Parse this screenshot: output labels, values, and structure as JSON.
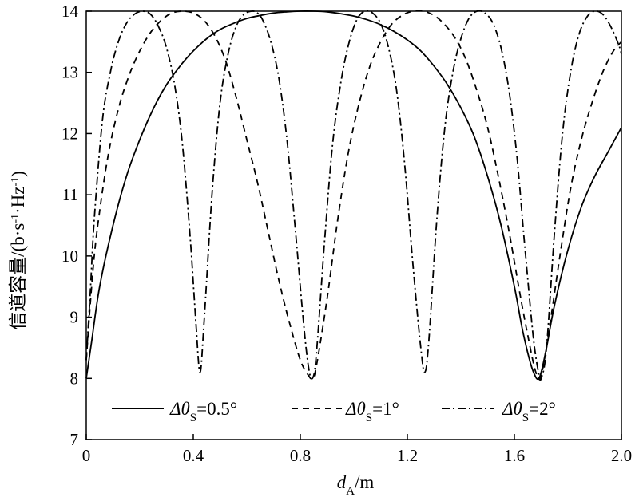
{
  "chart_data": {
    "type": "line",
    "xlabel": "dA/m",
    "xlabel_main": "d",
    "xlabel_sub": "A",
    "xlabel_unit": "/m",
    "ylabel": "信道容量/(b·s-1·Hz-1)",
    "ylabel_main": "信道容量/(b·s",
    "ylabel_sup1": "-1",
    "ylabel_mid": "·Hz",
    "ylabel_sup2": "-1",
    "ylabel_end": ")",
    "xlim": [
      0,
      2.0
    ],
    "ylim": [
      7,
      14
    ],
    "xticks": [
      0,
      0.4,
      0.8,
      1.2,
      1.6,
      2.0
    ],
    "xtick_labels": [
      "0",
      "0.4",
      "0.8",
      "1.2",
      "1.6",
      "2.0"
    ],
    "yticks": [
      7,
      8,
      9,
      10,
      11,
      12,
      13,
      14
    ],
    "ytick_labels": [
      "7",
      "8",
      "9",
      "10",
      "11",
      "12",
      "13",
      "14"
    ],
    "legend_position": "bottom",
    "grid": false,
    "series": [
      {
        "name": "Δθs=0.5°",
        "legend_main": "Δθ",
        "legend_sub": "S",
        "legend_val": "=0.5°",
        "style": "solid",
        "x": [
          0.0,
          0.02,
          0.05,
          0.1,
          0.15,
          0.2,
          0.25,
          0.3,
          0.35,
          0.4,
          0.45,
          0.5,
          0.55,
          0.6,
          0.65,
          0.7,
          0.75,
          0.8,
          0.85,
          0.9,
          0.95,
          1.0,
          1.05,
          1.1,
          1.15,
          1.2,
          1.25,
          1.3,
          1.35,
          1.4,
          1.45,
          1.5,
          1.55,
          1.6,
          1.63,
          1.66,
          1.68,
          1.69,
          1.7,
          1.72,
          1.75,
          1.8,
          1.85,
          1.9,
          1.95,
          2.0
        ],
        "y": [
          8.0,
          8.6,
          9.5,
          10.5,
          11.3,
          11.9,
          12.4,
          12.8,
          13.1,
          13.35,
          13.55,
          13.7,
          13.8,
          13.88,
          13.93,
          13.97,
          13.99,
          14.0,
          14.0,
          13.99,
          13.96,
          13.92,
          13.86,
          13.78,
          13.67,
          13.53,
          13.35,
          13.1,
          12.8,
          12.42,
          11.95,
          11.3,
          10.5,
          9.5,
          8.8,
          8.25,
          8.02,
          8.0,
          8.1,
          8.5,
          9.2,
          10.1,
          10.8,
          11.3,
          11.7,
          12.1
        ]
      },
      {
        "name": "Δθs=1°",
        "legend_main": "Δθ",
        "legend_sub": "S",
        "legend_val": "=1°",
        "style": "dashed",
        "x": [
          0.0,
          0.02,
          0.04,
          0.08,
          0.12,
          0.16,
          0.2,
          0.24,
          0.28,
          0.32,
          0.36,
          0.4,
          0.44,
          0.48,
          0.52,
          0.56,
          0.6,
          0.64,
          0.68,
          0.72,
          0.76,
          0.8,
          0.83,
          0.845,
          0.86,
          0.9,
          0.94,
          0.98,
          1.02,
          1.06,
          1.1,
          1.14,
          1.18,
          1.22,
          1.26,
          1.3,
          1.34,
          1.38,
          1.42,
          1.46,
          1.5,
          1.54,
          1.58,
          1.62,
          1.65,
          1.68,
          1.7,
          1.73,
          1.77,
          1.81,
          1.85,
          1.89,
          1.93,
          1.97,
          2.0
        ],
        "y": [
          8.3,
          9.5,
          10.4,
          11.6,
          12.4,
          12.95,
          13.35,
          13.65,
          13.85,
          13.97,
          14.0,
          13.97,
          13.85,
          13.6,
          13.2,
          12.6,
          11.9,
          11.2,
          10.4,
          9.6,
          8.9,
          8.3,
          8.05,
          8.0,
          8.2,
          9.3,
          10.6,
          11.7,
          12.5,
          13.1,
          13.5,
          13.78,
          13.93,
          14.0,
          14.0,
          13.93,
          13.78,
          13.55,
          13.2,
          12.7,
          12.1,
          11.3,
          10.4,
          9.4,
          8.7,
          8.1,
          8.05,
          8.8,
          10.0,
          11.1,
          11.9,
          12.5,
          13.0,
          13.35,
          13.5
        ]
      },
      {
        "name": "Δθs=2°",
        "legend_main": "Δθ",
        "legend_sub": "S",
        "legend_val": "=2°",
        "style": "dashdot",
        "x": [
          0.0,
          0.015,
          0.03,
          0.06,
          0.09,
          0.12,
          0.15,
          0.18,
          0.21,
          0.24,
          0.27,
          0.3,
          0.33,
          0.36,
          0.39,
          0.41,
          0.425,
          0.44,
          0.47,
          0.5,
          0.53,
          0.56,
          0.59,
          0.62,
          0.64,
          0.66,
          0.69,
          0.72,
          0.75,
          0.78,
          0.81,
          0.83,
          0.845,
          0.86,
          0.89,
          0.92,
          0.95,
          0.98,
          1.01,
          1.04,
          1.07,
          1.1,
          1.13,
          1.16,
          1.19,
          1.22,
          1.25,
          1.265,
          1.28,
          1.31,
          1.34,
          1.37,
          1.4,
          1.43,
          1.46,
          1.49,
          1.52,
          1.55,
          1.58,
          1.61,
          1.64,
          1.67,
          1.69,
          1.7,
          1.72,
          1.75,
          1.78,
          1.81,
          1.84,
          1.87,
          1.9,
          1.93,
          1.96,
          1.99,
          2.0
        ],
        "y": [
          8.3,
          9.4,
          10.6,
          12.2,
          13.0,
          13.5,
          13.8,
          13.95,
          14.0,
          13.95,
          13.75,
          13.4,
          12.8,
          11.8,
          10.2,
          8.9,
          8.1,
          8.9,
          11.0,
          12.5,
          13.3,
          13.75,
          13.95,
          14.0,
          13.97,
          13.85,
          13.5,
          12.9,
          11.9,
          10.5,
          9.0,
          8.2,
          8.0,
          8.4,
          10.2,
          11.8,
          12.8,
          13.45,
          13.85,
          14.0,
          13.97,
          13.8,
          13.4,
          12.7,
          11.5,
          9.9,
          8.5,
          8.1,
          8.6,
          10.6,
          12.1,
          13.0,
          13.55,
          13.88,
          14.0,
          13.97,
          13.8,
          13.4,
          12.7,
          11.6,
          10.1,
          8.7,
          8.1,
          8.0,
          8.5,
          10.4,
          12.0,
          13.0,
          13.6,
          13.9,
          14.0,
          13.95,
          13.75,
          13.45,
          13.3
        ]
      }
    ]
  }
}
